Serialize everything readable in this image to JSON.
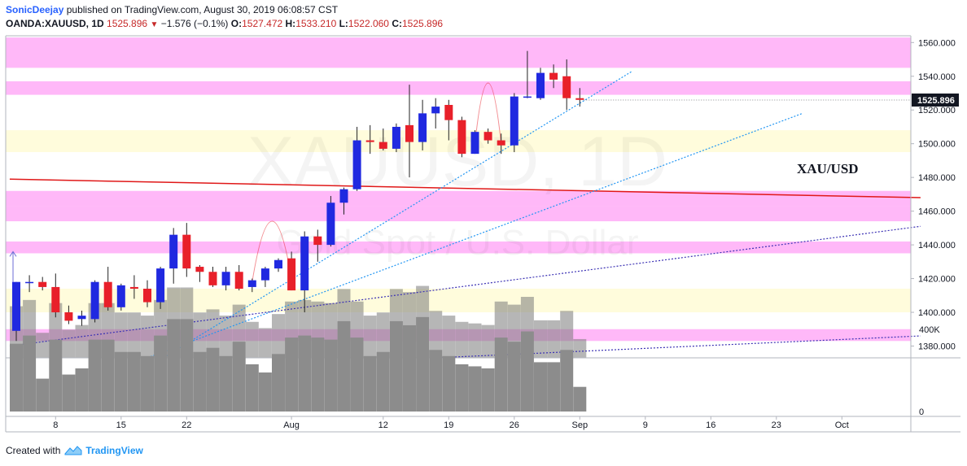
{
  "header": {
    "author": "SonicDeejay",
    "published_text": "published on TradingView.com, August 30, 2019 06:08:57 CST",
    "symbol": "OANDA:XAUUSD, 1D",
    "last": "1525.896",
    "change": "−1.576 (−0.1%)",
    "o_label": "O:",
    "o_value": "1527.472",
    "h_label": "H:",
    "h_value": "1533.210",
    "l_label": "L:",
    "l_value": "1522.060",
    "c_label": "C:",
    "c_value": "1525.896"
  },
  "footer": {
    "created_with": "Created with",
    "brand": "TradingView"
  },
  "watermark": {
    "symbol": "XAUUSD, 1D",
    "description": "Gold Spot / U.S. Dollar"
  },
  "annotation_text": "XAU/USD",
  "colors": {
    "up": "#2029e0",
    "down": "#e8202a",
    "volume": "#8c8c8c",
    "zone_pink": "#ff9cf5",
    "zone_yellow": "#fffbd6",
    "price_tag": "#131722"
  },
  "chart_data": {
    "type": "candlestick",
    "y_axis": {
      "ylim": [
        1373,
        1564
      ],
      "ticks": [
        1380,
        1400,
        1420,
        1440,
        1460,
        1480,
        1500,
        1520,
        1540,
        1560
      ],
      "tick_labels": [
        "1380.000",
        "1400.000",
        "1420.000",
        "1440.000",
        "1460.000",
        "1480.000",
        "1500.000",
        "1520.000",
        "1540.000",
        "1560.000"
      ]
    },
    "last_price_label": "1525.896",
    "x_axis": {
      "tick_labels": [
        {
          "label": "8",
          "index": 3
        },
        {
          "label": "15",
          "index": 8
        },
        {
          "label": "22",
          "index": 13
        },
        {
          "label": "Aug",
          "index": 21
        },
        {
          "label": "12",
          "index": 28
        },
        {
          "label": "19",
          "index": 33
        },
        {
          "label": "26",
          "index": 38
        },
        {
          "label": "Sep",
          "index": 43
        },
        {
          "label": "9",
          "index": 48
        },
        {
          "label": "16",
          "index": 53
        },
        {
          "label": "23",
          "index": 58
        },
        {
          "label": "Oct",
          "index": 63
        }
      ]
    },
    "volume_axis": {
      "tick_labels": [
        "400K",
        "0"
      ],
      "ticks": [
        400000,
        0
      ]
    },
    "candles": [
      {
        "i": 0,
        "o": 1389,
        "h": 1418,
        "l": 1383,
        "c": 1418
      },
      {
        "i": 1,
        "o": 1418,
        "h": 1422,
        "l": 1412,
        "c": 1418
      },
      {
        "i": 2,
        "o": 1418,
        "h": 1421,
        "l": 1413,
        "c": 1415
      },
      {
        "i": 3,
        "o": 1415,
        "h": 1423,
        "l": 1397,
        "c": 1400
      },
      {
        "i": 4,
        "o": 1400,
        "h": 1404,
        "l": 1393,
        "c": 1395
      },
      {
        "i": 5,
        "o": 1396,
        "h": 1401,
        "l": 1392,
        "c": 1398
      },
      {
        "i": 6,
        "o": 1396,
        "h": 1419,
        "l": 1394,
        "c": 1418
      },
      {
        "i": 7,
        "o": 1418,
        "h": 1427,
        "l": 1401,
        "c": 1403
      },
      {
        "i": 8,
        "o": 1403,
        "h": 1417,
        "l": 1401,
        "c": 1416
      },
      {
        "i": 9,
        "o": 1415,
        "h": 1422,
        "l": 1408,
        "c": 1414
      },
      {
        "i": 10,
        "o": 1414,
        "h": 1419,
        "l": 1403,
        "c": 1406
      },
      {
        "i": 11,
        "o": 1406,
        "h": 1427,
        "l": 1402,
        "c": 1426
      },
      {
        "i": 12,
        "o": 1426,
        "h": 1450,
        "l": 1417,
        "c": 1446
      },
      {
        "i": 13,
        "o": 1446,
        "h": 1453,
        "l": 1421,
        "c": 1426
      },
      {
        "i": 14,
        "o": 1427,
        "h": 1428,
        "l": 1418,
        "c": 1424
      },
      {
        "i": 15,
        "o": 1424,
        "h": 1427,
        "l": 1415,
        "c": 1416
      },
      {
        "i": 16,
        "o": 1416,
        "h": 1427,
        "l": 1413,
        "c": 1424
      },
      {
        "i": 17,
        "o": 1424,
        "h": 1428,
        "l": 1413,
        "c": 1414
      },
      {
        "i": 18,
        "o": 1415,
        "h": 1420,
        "l": 1412,
        "c": 1419
      },
      {
        "i": 19,
        "o": 1419,
        "h": 1427,
        "l": 1415,
        "c": 1426
      },
      {
        "i": 20,
        "o": 1426,
        "h": 1432,
        "l": 1424,
        "c": 1431
      },
      {
        "i": 21,
        "o": 1432,
        "h": 1436,
        "l": 1413,
        "c": 1413
      },
      {
        "i": 22,
        "o": 1413,
        "h": 1448,
        "l": 1400,
        "c": 1445
      },
      {
        "i": 23,
        "o": 1445,
        "h": 1449,
        "l": 1430,
        "c": 1440
      },
      {
        "i": 24,
        "o": 1440,
        "h": 1469,
        "l": 1439,
        "c": 1465
      },
      {
        "i": 25,
        "o": 1465,
        "h": 1474,
        "l": 1458,
        "c": 1473
      },
      {
        "i": 26,
        "o": 1473,
        "h": 1510,
        "l": 1472,
        "c": 1502
      },
      {
        "i": 27,
        "o": 1502,
        "h": 1511,
        "l": 1494,
        "c": 1501
      },
      {
        "i": 28,
        "o": 1501,
        "h": 1509,
        "l": 1496,
        "c": 1497
      },
      {
        "i": 29,
        "o": 1497,
        "h": 1512,
        "l": 1495,
        "c": 1510
      },
      {
        "i": 30,
        "o": 1511,
        "h": 1535,
        "l": 1480,
        "c": 1501
      },
      {
        "i": 31,
        "o": 1501,
        "h": 1526,
        "l": 1496,
        "c": 1518
      },
      {
        "i": 32,
        "o": 1518,
        "h": 1527,
        "l": 1509,
        "c": 1522
      },
      {
        "i": 33,
        "o": 1523,
        "h": 1526,
        "l": 1502,
        "c": 1514
      },
      {
        "i": 34,
        "o": 1514,
        "h": 1516,
        "l": 1492,
        "c": 1494
      },
      {
        "i": 35,
        "o": 1494,
        "h": 1508,
        "l": 1494,
        "c": 1507
      },
      {
        "i": 36,
        "o": 1507,
        "h": 1509,
        "l": 1500,
        "c": 1502
      },
      {
        "i": 37,
        "o": 1502,
        "h": 1506,
        "l": 1494,
        "c": 1499
      },
      {
        "i": 38,
        "o": 1499,
        "h": 1530,
        "l": 1495,
        "c": 1528
      },
      {
        "i": 39,
        "o": 1528,
        "h": 1555,
        "l": 1527,
        "c": 1528
      },
      {
        "i": 40,
        "o": 1527,
        "h": 1545,
        "l": 1526,
        "c": 1542
      },
      {
        "i": 41,
        "o": 1542,
        "h": 1547,
        "l": 1533,
        "c": 1538
      },
      {
        "i": 42,
        "o": 1540,
        "h": 1550,
        "l": 1520,
        "c": 1527
      },
      {
        "i": 43,
        "o": 1527,
        "h": 1533,
        "l": 1522,
        "c": 1526
      }
    ],
    "volume": [
      {
        "i": 0,
        "v": 330000,
        "up": true
      },
      {
        "i": 1,
        "v": 370000,
        "up": true
      },
      {
        "i": 2,
        "v": 160000,
        "up": false
      },
      {
        "i": 3,
        "v": 350000,
        "up": false
      },
      {
        "i": 4,
        "v": 180000,
        "up": false
      },
      {
        "i": 5,
        "v": 210000,
        "up": true
      },
      {
        "i": 6,
        "v": 350000,
        "up": true
      },
      {
        "i": 7,
        "v": 350000,
        "up": false
      },
      {
        "i": 8,
        "v": 290000,
        "up": true
      },
      {
        "i": 9,
        "v": 290000,
        "up": false
      },
      {
        "i": 10,
        "v": 270000,
        "up": false
      },
      {
        "i": 11,
        "v": 370000,
        "up": true
      },
      {
        "i": 12,
        "v": 450000,
        "up": true
      },
      {
        "i": 13,
        "v": 450000,
        "up": false
      },
      {
        "i": 14,
        "v": 290000,
        "up": false
      },
      {
        "i": 15,
        "v": 310000,
        "up": false
      },
      {
        "i": 16,
        "v": 270000,
        "up": true
      },
      {
        "i": 17,
        "v": 340000,
        "up": false
      },
      {
        "i": 18,
        "v": 230000,
        "up": true
      },
      {
        "i": 19,
        "v": 190000,
        "up": true
      },
      {
        "i": 20,
        "v": 280000,
        "up": true
      },
      {
        "i": 21,
        "v": 360000,
        "up": false
      },
      {
        "i": 22,
        "v": 370000,
        "up": true
      },
      {
        "i": 23,
        "v": 360000,
        "up": false
      },
      {
        "i": 24,
        "v": 350000,
        "up": true
      },
      {
        "i": 25,
        "v": 440000,
        "up": true
      },
      {
        "i": 26,
        "v": 360000,
        "up": true
      },
      {
        "i": 27,
        "v": 270000,
        "up": false
      },
      {
        "i": 28,
        "v": 290000,
        "up": false
      },
      {
        "i": 29,
        "v": 440000,
        "up": true
      },
      {
        "i": 30,
        "v": 420000,
        "up": false
      },
      {
        "i": 31,
        "v": 460000,
        "up": true
      },
      {
        "i": 32,
        "v": 300000,
        "up": true
      },
      {
        "i": 33,
        "v": 270000,
        "up": false
      },
      {
        "i": 34,
        "v": 230000,
        "up": false
      },
      {
        "i": 35,
        "v": 220000,
        "up": true
      },
      {
        "i": 36,
        "v": 210000,
        "up": false
      },
      {
        "i": 37,
        "v": 360000,
        "up": false
      },
      {
        "i": 38,
        "v": 340000,
        "up": true
      },
      {
        "i": 39,
        "v": 390000,
        "up": true
      },
      {
        "i": 40,
        "v": 240000,
        "up": true
      },
      {
        "i": 41,
        "v": 240000,
        "up": false
      },
      {
        "i": 42,
        "v": 300000,
        "up": false
      },
      {
        "i": 43,
        "v": 120000,
        "up": false
      }
    ],
    "zones": [
      {
        "kind": "pink",
        "from": 1545,
        "to": 1563
      },
      {
        "kind": "pink",
        "from": 1529,
        "to": 1537
      },
      {
        "kind": "yellow",
        "from": 1495,
        "to": 1508
      },
      {
        "kind": "pink",
        "from": 1463,
        "to": 1472
      },
      {
        "kind": "pink",
        "from": 1454,
        "to": 1463
      },
      {
        "kind": "pink",
        "from": 1435,
        "to": 1442
      },
      {
        "kind": "yellow",
        "from": 1400,
        "to": 1414
      },
      {
        "kind": "pink",
        "from": 1383,
        "to": 1390
      }
    ],
    "trendlines": [
      {
        "name": "resistance",
        "style": "solid",
        "color": "#e01818",
        "from": {
          "i": -0.5,
          "p": 1479
        },
        "to": {
          "i": 69,
          "p": 1468
        }
      },
      {
        "name": "steep-support",
        "style": "dotted",
        "color": "#2196f3",
        "from": {
          "i": 11,
          "p": 1372
        },
        "to": {
          "i": 47,
          "p": 1543
        }
      },
      {
        "name": "mid-support",
        "style": "dotted",
        "color": "#2196f3",
        "from": {
          "i": 10,
          "p": 1373
        },
        "to": {
          "i": 60,
          "p": 1518
        }
      },
      {
        "name": "wide-support",
        "style": "dotted",
        "color": "#3c32b4",
        "from": {
          "i": -0.5,
          "p": 1380
        },
        "to": {
          "i": 69,
          "p": 1451
        }
      },
      {
        "name": "base-support",
        "style": "dotted",
        "color": "#3c32b4",
        "from": {
          "i": 32,
          "p": 1373
        },
        "to": {
          "i": 69,
          "p": 1386
        }
      }
    ],
    "arcs": [
      {
        "from": {
          "i": 18,
          "p": 1418
        },
        "peak": {
          "i": 19.5,
          "p": 1454
        },
        "to": {
          "i": 21,
          "p": 1420
        }
      },
      {
        "from": {
          "i": 35,
          "p": 1500
        },
        "peak": {
          "i": 36,
          "p": 1536
        },
        "to": {
          "i": 37,
          "p": 1500
        }
      }
    ],
    "up_arrow": {
      "i": 0,
      "from": 1418,
      "to": 1436
    }
  }
}
